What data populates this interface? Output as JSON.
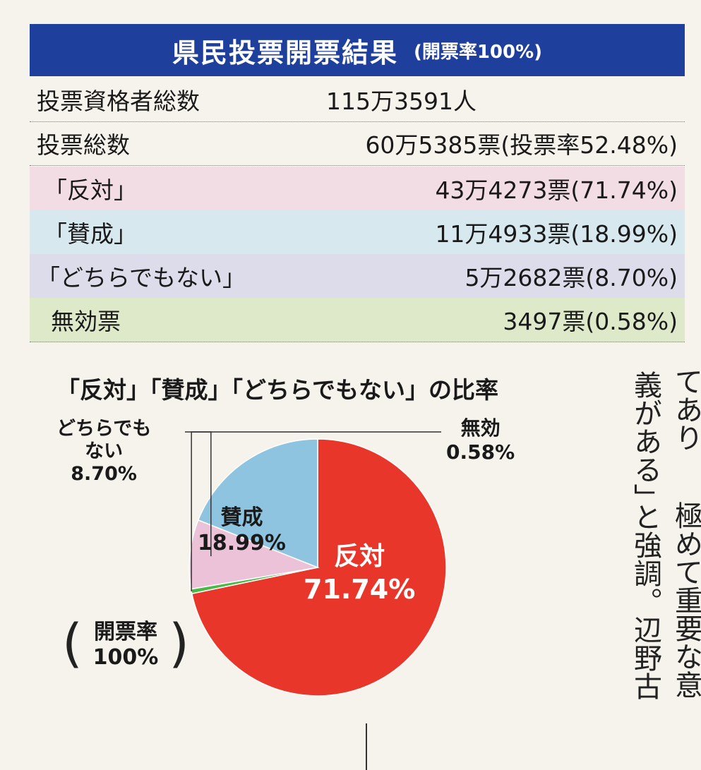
{
  "header": {
    "title": "県民投票開票結果",
    "subtitle": "(開票率100%)"
  },
  "summary": [
    {
      "label": "投票資格者総数",
      "value": "115万3591人"
    },
    {
      "label": "投票総数",
      "value": "60万5385票(投票率52.48%)"
    }
  ],
  "results": [
    {
      "label": "「反対」",
      "value": "43万4273票(71.74%)",
      "bg": "#f1dde3"
    },
    {
      "label": "「賛成」",
      "value": "11万4933票(18.99%)",
      "bg": "#d8e8ef"
    },
    {
      "label": "「どちらでもない」",
      "value": "5万2682票(8.70%)",
      "bg": "#dcdcea"
    },
    {
      "label": "無効票",
      "value": "3497票(0.58%)",
      "bg": "#dde9c9"
    }
  ],
  "chart_data": {
    "type": "pie",
    "title": "「反対」「賛成」「どちらでもない」の比率",
    "slices": [
      {
        "name": "反対",
        "label": "反対",
        "value": 71.74,
        "value_label": "71.74%",
        "color": "#e8362a"
      },
      {
        "name": "無効",
        "label": "無効",
        "value": 0.58,
        "value_label": "0.58%",
        "color": "#4cb848"
      },
      {
        "name": "どちらでもない",
        "label": "どちらでも\nない",
        "value": 8.7,
        "value_label": "8.70%",
        "color": "#ecc2d8"
      },
      {
        "name": "賛成",
        "label": "賛成",
        "value": 18.99,
        "value_label": "18.99%",
        "color": "#8ec4df"
      }
    ],
    "start": "12 o'clock",
    "direction": "clockwise"
  },
  "rate_note": {
    "line1": "開票率",
    "line2": "100%"
  },
  "article": {
    "columns": [
      "てあり",
      "義がある」",
      "極めて重要な意",
      "と強調。辺野古"
    ]
  }
}
